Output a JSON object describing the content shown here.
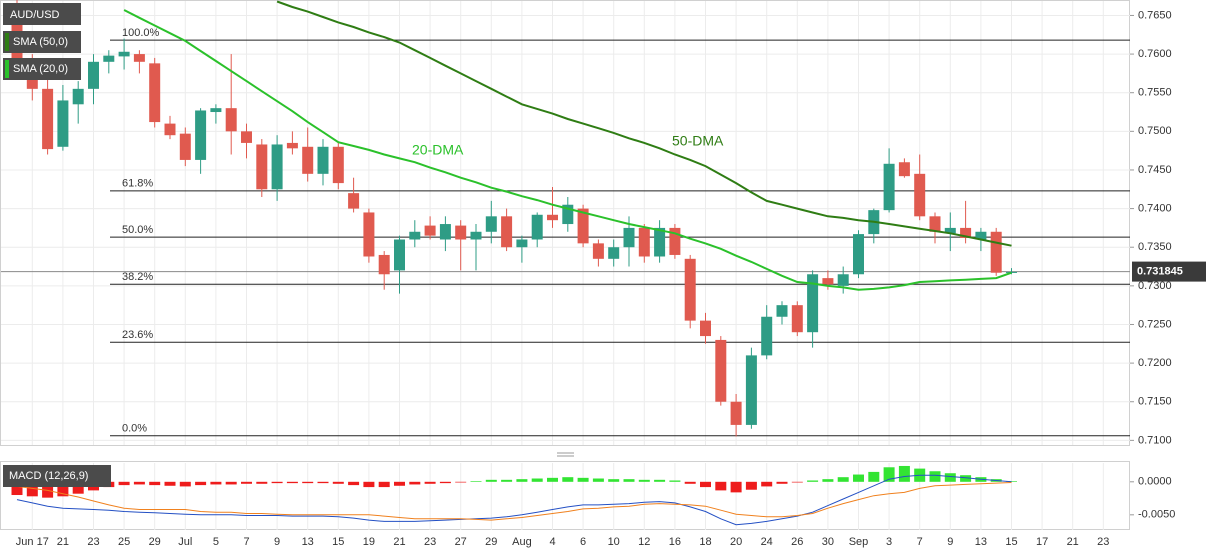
{
  "chart_data": [
    {
      "type": "candlestick",
      "title": "AUD/USD",
      "categories": [
        null,
        "Jun 17",
        null,
        "21",
        null,
        "23",
        null,
        "25",
        null,
        "29",
        null,
        "Jul",
        null,
        "5",
        null,
        "7",
        null,
        "9",
        null,
        "13",
        null,
        "15",
        null,
        "19",
        null,
        "21",
        null,
        "23",
        null,
        "27",
        null,
        "29",
        null,
        "Aug",
        null,
        "4",
        null,
        "6",
        null,
        "10",
        null,
        "12",
        null,
        "16",
        null,
        "18",
        null,
        "20",
        null,
        "24",
        null,
        "26",
        null,
        "30",
        null,
        "Sep",
        null,
        "3",
        null,
        "7",
        null,
        "9",
        null,
        "13",
        null,
        "15",
        null,
        "17",
        null,
        "21",
        null,
        "23"
      ],
      "open": [
        0.766,
        0.759,
        0.7555,
        0.748,
        0.7535,
        0.7555,
        0.759,
        0.7597,
        0.76,
        0.7588,
        0.751,
        0.7497,
        0.7463,
        0.7525,
        0.753,
        0.75,
        0.7483,
        0.7425,
        0.7485,
        0.748,
        0.7445,
        0.748,
        0.742,
        0.7395,
        0.734,
        0.732,
        0.736,
        0.7378,
        0.736,
        0.7378,
        0.736,
        0.737,
        0.739,
        0.735,
        0.736,
        0.7392,
        0.738,
        0.74,
        0.7355,
        0.7335,
        0.735,
        0.7375,
        0.7338,
        0.7375,
        0.7335,
        0.7255,
        0.723,
        0.715,
        0.712,
        0.721,
        0.726,
        0.7275,
        0.724,
        0.731,
        0.73,
        0.7315,
        0.7367,
        0.7398,
        0.746,
        0.7445,
        0.739,
        0.7368,
        0.7375,
        0.736,
        0.737,
        0.7317,
        null,
        null,
        null,
        null,
        null,
        null
      ],
      "high": [
        0.767,
        0.76,
        0.757,
        0.756,
        0.7565,
        0.76,
        0.7605,
        0.762,
        0.7605,
        0.7595,
        0.752,
        0.7505,
        0.753,
        0.7535,
        0.76,
        0.751,
        0.749,
        0.7495,
        0.75,
        0.7505,
        0.749,
        0.7485,
        0.744,
        0.74,
        0.7345,
        0.7365,
        0.7385,
        0.739,
        0.739,
        0.7385,
        0.738,
        0.741,
        0.74,
        0.7365,
        0.7395,
        0.7428,
        0.7415,
        0.7405,
        0.736,
        0.736,
        0.739,
        0.738,
        0.7385,
        0.738,
        0.734,
        0.7265,
        0.7235,
        0.716,
        0.722,
        0.7275,
        0.728,
        0.728,
        0.732,
        0.732,
        0.7325,
        0.7372,
        0.74,
        0.7478,
        0.7465,
        0.747,
        0.7395,
        0.7395,
        0.741,
        0.7375,
        0.7375,
        0.7323,
        null,
        null,
        null,
        null,
        null,
        null
      ],
      "low": [
        0.758,
        0.754,
        0.747,
        0.7475,
        0.751,
        0.7535,
        0.7575,
        0.758,
        0.7575,
        0.7505,
        0.749,
        0.7455,
        0.7445,
        0.751,
        0.747,
        0.7465,
        0.7415,
        0.741,
        0.747,
        0.7435,
        0.743,
        0.7425,
        0.7395,
        0.733,
        0.7295,
        0.729,
        0.735,
        0.736,
        0.7345,
        0.732,
        0.732,
        0.7355,
        0.7345,
        0.733,
        0.735,
        0.7375,
        0.737,
        0.735,
        0.7325,
        0.7325,
        0.7325,
        0.733,
        0.733,
        0.7335,
        0.7245,
        0.7225,
        0.7145,
        0.7105,
        0.7115,
        0.7205,
        0.725,
        0.7235,
        0.722,
        0.7295,
        0.729,
        0.731,
        0.7355,
        0.7395,
        0.744,
        0.7385,
        0.7355,
        0.7345,
        0.7355,
        0.7345,
        0.7313,
        0.7315,
        null,
        null,
        null,
        null,
        null,
        null
      ],
      "close": [
        0.759,
        0.7555,
        0.7477,
        0.754,
        0.7555,
        0.759,
        0.7598,
        0.7603,
        0.759,
        0.7512,
        0.7495,
        0.7463,
        0.7527,
        0.753,
        0.75,
        0.7485,
        0.7425,
        0.7483,
        0.7478,
        0.7445,
        0.748,
        0.7433,
        0.74,
        0.7338,
        0.7315,
        0.736,
        0.737,
        0.7365,
        0.738,
        0.736,
        0.737,
        0.739,
        0.735,
        0.736,
        0.7392,
        0.7385,
        0.7405,
        0.7355,
        0.7335,
        0.735,
        0.7375,
        0.7338,
        0.7375,
        0.734,
        0.7255,
        0.7235,
        0.715,
        0.712,
        0.721,
        0.726,
        0.7275,
        0.724,
        0.7315,
        0.7302,
        0.7315,
        0.7367,
        0.7398,
        0.7458,
        0.7442,
        0.739,
        0.737,
        0.7375,
        0.7362,
        0.737,
        0.7317,
        0.7318,
        null,
        null,
        null,
        null,
        null,
        null
      ],
      "up_color": "#2e9c85",
      "down_color": "#e05a4f",
      "series": [
        {
          "name": "SMA (50,0)",
          "color": "#2f7d14",
          "annotation": "50-DMA",
          "values": [
            null,
            null,
            null,
            null,
            null,
            null,
            null,
            null,
            null,
            null,
            null,
            null,
            null,
            null,
            null,
            null,
            null,
            0.7668,
            0.7661,
            0.7655,
            0.7648,
            0.7641,
            0.7635,
            0.7628,
            0.7622,
            0.7615,
            0.7605,
            0.7595,
            0.7585,
            0.7575,
            0.7565,
            0.7555,
            0.7545,
            0.7535,
            0.7529,
            0.7523,
            0.7516,
            0.751,
            0.7504,
            0.7498,
            0.7491,
            0.7485,
            0.7478,
            0.747,
            0.7463,
            0.7455,
            0.7444,
            0.7433,
            0.7421,
            0.741,
            0.7405,
            0.74,
            0.7395,
            0.739,
            0.7388,
            0.7385,
            0.7383,
            0.738,
            0.7377,
            0.7374,
            0.7371,
            0.7368,
            0.7364,
            0.736,
            0.7356,
            0.7352,
            null,
            null,
            null,
            null,
            null,
            null
          ]
        },
        {
          "name": "SMA (20,0)",
          "color": "#2bc12b",
          "annotation": "20-DMA",
          "values": [
            null,
            null,
            null,
            null,
            null,
            null,
            null,
            0.7657,
            0.7647,
            0.7637,
            0.7627,
            0.7617,
            0.7604,
            0.7591,
            0.7578,
            0.7565,
            0.7552,
            0.7539,
            0.7526,
            0.7512,
            0.7499,
            0.7486,
            0.7481,
            0.7476,
            0.747,
            0.7465,
            0.746,
            0.7453,
            0.7447,
            0.744,
            0.7434,
            0.7427,
            0.7422,
            0.7416,
            0.7411,
            0.7405,
            0.74,
            0.7395,
            0.739,
            0.7385,
            0.738,
            0.7376,
            0.7372,
            0.7368,
            0.7361,
            0.7355,
            0.7348,
            0.7339,
            0.7331,
            0.7322,
            0.7313,
            0.7305,
            0.7303,
            0.73,
            0.7298,
            0.7295,
            0.7296,
            0.7298,
            0.7301,
            0.7305,
            0.7306,
            0.7307,
            0.7308,
            0.7309,
            0.731,
            0.7317,
            null,
            null,
            null,
            null,
            null,
            null
          ]
        }
      ],
      "fib_levels": [
        {
          "label": "100.0%",
          "value": 0.7618
        },
        {
          "label": "61.8%",
          "value": 0.7423
        },
        {
          "label": "50.0%",
          "value": 0.7363
        },
        {
          "label": "38.2%",
          "value": 0.7302
        },
        {
          "label": "23.6%",
          "value": 0.7227
        },
        {
          "label": "0.0%",
          "value": 0.7106
        }
      ],
      "last_price": 0.731845,
      "ylim": [
        0.7094,
        0.767
      ],
      "yticks": [
        {
          "value": 0.71,
          "label": "0.7100"
        },
        {
          "value": 0.715,
          "label": "0.7150"
        },
        {
          "value": 0.72,
          "label": "0.7200"
        },
        {
          "value": 0.725,
          "label": "0.7250"
        },
        {
          "value": 0.73,
          "label": "0.7300"
        },
        {
          "value": 0.735,
          "label": "0.7350"
        },
        {
          "value": 0.74,
          "label": "0.7400"
        },
        {
          "value": 0.745,
          "label": "0.7450"
        },
        {
          "value": 0.75,
          "label": "0.7500"
        },
        {
          "value": 0.755,
          "label": "0.7550"
        },
        {
          "value": 0.76,
          "label": "0.7600"
        },
        {
          "value": 0.765,
          "label": "0.7650"
        }
      ],
      "grid": true
    },
    {
      "type": "macd",
      "title": "MACD (12,26,9)",
      "histogram": [
        -0.002,
        -0.0022,
        -0.0024,
        -0.0022,
        -0.0018,
        -0.0013,
        -0.0008,
        -0.0005,
        -0.0004,
        -0.0005,
        -0.0006,
        -0.0007,
        -0.0005,
        -0.0004,
        -0.0004,
        -0.0003,
        -0.0003,
        -0.0002,
        -0.0002,
        -0.0002,
        -0.0002,
        -0.0003,
        -0.0005,
        -0.0008,
        -0.0008,
        -0.0006,
        -0.0004,
        -0.0003,
        -0.0002,
        -0.0001,
        0.0001,
        0.0003,
        0.0003,
        0.0004,
        0.0005,
        0.0006,
        0.0007,
        0.0006,
        0.0005,
        0.0004,
        0.0004,
        0.0003,
        0.0003,
        0.0002,
        -0.0003,
        -0.0008,
        -0.0013,
        -0.0016,
        -0.0012,
        -0.0007,
        -0.0003,
        -0.0001,
        0.0002,
        0.0004,
        0.0007,
        0.0011,
        0.0015,
        0.0022,
        0.0024,
        0.002,
        0.0016,
        0.0013,
        0.001,
        0.0007,
        0.0004,
        0.0001,
        null,
        null,
        null,
        null,
        null,
        null
      ],
      "up_color": "#33e433",
      "down_color": "#ee1c1c",
      "series": [
        {
          "name": "MACD",
          "color": "#2450c4",
          "values": [
            -0.0027,
            -0.0032,
            -0.0037,
            -0.004,
            -0.0041,
            -0.0042,
            -0.0043,
            -0.0045,
            -0.0046,
            -0.0047,
            -0.0048,
            -0.0049,
            -0.005,
            -0.005,
            -0.005,
            -0.0051,
            -0.0051,
            -0.0051,
            -0.0052,
            -0.0052,
            -0.0052,
            -0.0053,
            -0.0055,
            -0.0058,
            -0.006,
            -0.006,
            -0.006,
            -0.0059,
            -0.0058,
            -0.0057,
            -0.0056,
            -0.0055,
            -0.0053,
            -0.005,
            -0.0046,
            -0.0042,
            -0.0038,
            -0.0035,
            -0.0035,
            -0.0034,
            -0.0033,
            -0.0031,
            -0.003,
            -0.0032,
            -0.0038,
            -0.0045,
            -0.0056,
            -0.0065,
            -0.0063,
            -0.006,
            -0.0056,
            -0.0052,
            -0.0046,
            -0.0036,
            -0.0026,
            -0.0016,
            -0.0006,
            0.0004,
            0.0008,
            0.001,
            0.001,
            0.0008,
            0.0006,
            0.0004,
            0.0002,
            0.0,
            null,
            null,
            null,
            null,
            null,
            null
          ]
        },
        {
          "name": "Signal",
          "color": "#f0811e",
          "values": [
            -0.0007,
            -0.001,
            -0.0013,
            -0.0018,
            -0.0023,
            -0.0029,
            -0.0035,
            -0.004,
            -0.0042,
            -0.0042,
            -0.0042,
            -0.0042,
            -0.0045,
            -0.0046,
            -0.0046,
            -0.0048,
            -0.0048,
            -0.0049,
            -0.005,
            -0.005,
            -0.005,
            -0.005,
            -0.005,
            -0.005,
            -0.0052,
            -0.0054,
            -0.0056,
            -0.0056,
            -0.0056,
            -0.0056,
            -0.0057,
            -0.0058,
            -0.0056,
            -0.0054,
            -0.0051,
            -0.0048,
            -0.0045,
            -0.0041,
            -0.004,
            -0.0038,
            -0.0037,
            -0.0034,
            -0.0033,
            -0.0034,
            -0.0035,
            -0.0037,
            -0.0043,
            -0.0049,
            -0.0051,
            -0.0053,
            -0.0053,
            -0.0051,
            -0.0048,
            -0.004,
            -0.0033,
            -0.0027,
            -0.0021,
            -0.0018,
            -0.0016,
            -0.001,
            -0.0006,
            -0.0005,
            -0.0004,
            -0.0003,
            -0.0002,
            -0.0001,
            null,
            null,
            null,
            null,
            null,
            null
          ]
        }
      ],
      "ylim": [
        -0.0073,
        0.003
      ],
      "yticks": [
        {
          "value": 0,
          "label": "0.0000"
        },
        {
          "value": -0.005,
          "label": "-0.0050"
        }
      ]
    }
  ]
}
